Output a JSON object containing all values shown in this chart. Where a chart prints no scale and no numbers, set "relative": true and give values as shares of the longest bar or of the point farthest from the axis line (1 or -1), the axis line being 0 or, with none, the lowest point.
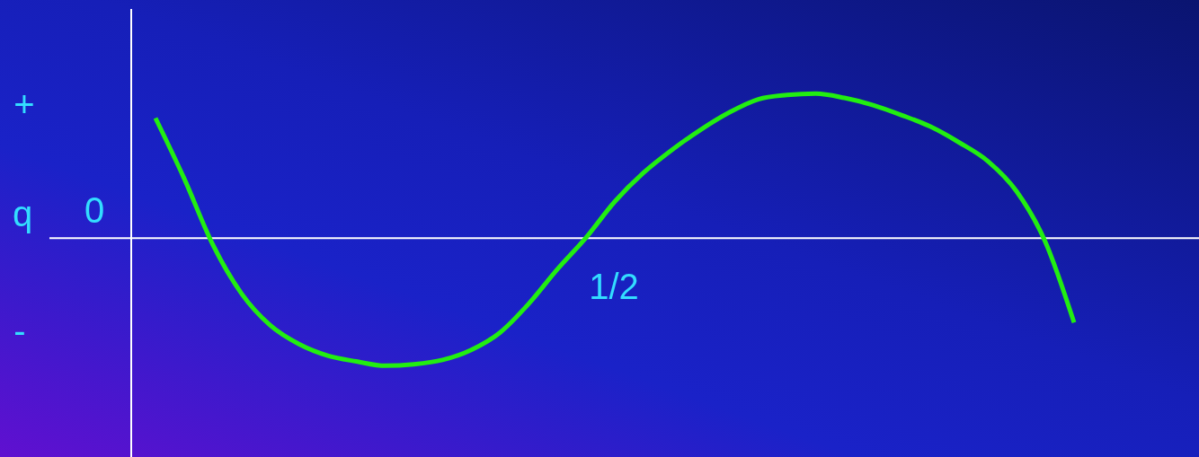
{
  "chart_data": {
    "type": "line",
    "relative": true,
    "ylabel": "q",
    "annotations": [
      "+",
      "0",
      "-",
      "1/2"
    ],
    "categories": [
      null,
      null,
      null,
      null,
      null,
      null,
      null,
      null,
      null,
      null,
      null,
      null,
      null,
      null,
      null,
      null,
      null,
      null,
      null,
      null,
      null,
      null,
      null,
      null,
      null,
      null,
      null,
      null,
      null,
      null,
      null,
      null,
      null
    ],
    "series": [
      {
        "color": "#22ee11",
        "values": [
          0.83,
          0.41,
          -0.05,
          -0.39,
          -0.61,
          -0.74,
          -0.82,
          -0.86,
          -0.89,
          -0.88,
          -0.85,
          -0.78,
          -0.66,
          -0.46,
          -0.22,
          0,
          0.25,
          0.45,
          0.61,
          0.75,
          0.87,
          0.96,
          0.99,
          1,
          0.97,
          0.92,
          0.85,
          0.77,
          0.66,
          0.53,
          0.32,
          -0.03,
          -0.59
        ]
      }
    ],
    "grid": false,
    "legend": false,
    "marker": "none",
    "line_style": "solid"
  }
}
